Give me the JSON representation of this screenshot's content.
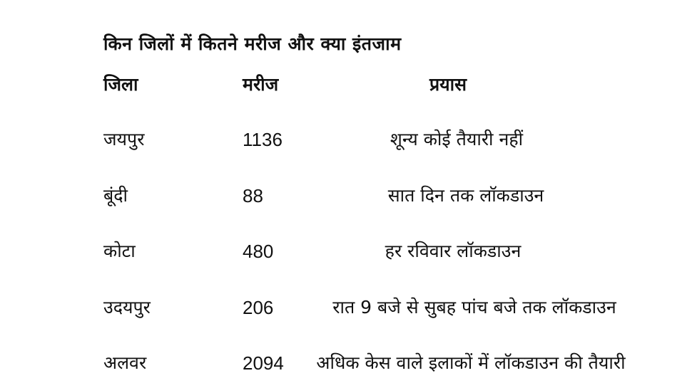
{
  "title": "किन जिलों में कितने मरीज और क्या इंतजाम",
  "headers": {
    "district": "जिला",
    "patients": "मरीज",
    "effort": "प्रयास"
  },
  "rows": [
    {
      "district": "जयपुर",
      "patients": "1136",
      "effort": "शून्य कोई तैयारी नहीं"
    },
    {
      "district": "बूंदी",
      "patients": "88",
      "effort": "सात दिन तक लॉकडाउन"
    },
    {
      "district": "कोटा",
      "patients": "480",
      "effort": "हर रविवार लॉकडाउन"
    },
    {
      "district": "उदयपुर",
      "patients": "206",
      "effort": "रात 9 बजे से सुबह पांच बजे तक लॉकडाउन"
    },
    {
      "district": "अलवर",
      "patients": "2094",
      "effort": "अधिक केस वाले इलाकों में लॉकडाउन की तैयारी"
    }
  ]
}
